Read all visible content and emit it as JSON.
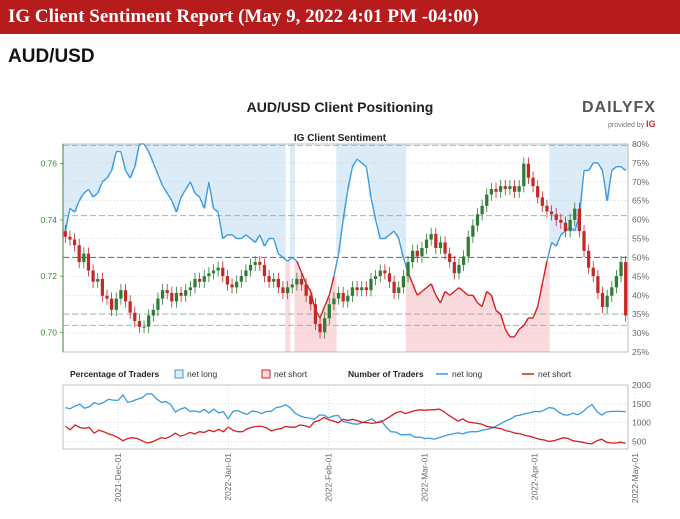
{
  "header": {
    "title": "IG Client Sentiment Report (May 9, 2022 4:01 PM -04:00)",
    "pair": "AUD/USD"
  },
  "logo": {
    "brand": "DAILYFX",
    "provided_by": "provided by",
    "ig": "IG"
  },
  "colors": {
    "banner": "#b71c1c",
    "net_long": "#3b9ae1",
    "net_short": "#d62020",
    "long_fill": "#dcebf8",
    "short_fill": "#fadadd",
    "candle_up": "#2e7d32",
    "candle_down": "#c62828"
  },
  "chart_data": [
    {
      "type": "candlestick",
      "title": "AUD/USD Client Positioning",
      "subtitle": "IG Client Sentiment",
      "y_left": {
        "ticks": [
          "0.76",
          "0.74",
          "0.72",
          "0.70"
        ],
        "values": [
          0.76,
          0.74,
          0.72,
          0.7
        ],
        "range": [
          0.693,
          0.767
        ]
      },
      "y_right": {
        "ticks": [
          "80%",
          "75%",
          "70%",
          "65%",
          "60%",
          "55%",
          "50%",
          "45%",
          "40%",
          "35%",
          "30%",
          "25%"
        ],
        "range": [
          25,
          80
        ]
      },
      "price_close": [
        0.734,
        0.733,
        0.731,
        0.725,
        0.728,
        0.722,
        0.718,
        0.719,
        0.713,
        0.712,
        0.708,
        0.712,
        0.715,
        0.711,
        0.707,
        0.704,
        0.702,
        0.702,
        0.706,
        0.708,
        0.712,
        0.715,
        0.714,
        0.711,
        0.714,
        0.713,
        0.715,
        0.716,
        0.719,
        0.718,
        0.72,
        0.721,
        0.722,
        0.723,
        0.72,
        0.717,
        0.716,
        0.718,
        0.72,
        0.722,
        0.724,
        0.725,
        0.724,
        0.72,
        0.718,
        0.719,
        0.716,
        0.714,
        0.716,
        0.717,
        0.719,
        0.717,
        0.713,
        0.71,
        0.703,
        0.7,
        0.705,
        0.71,
        0.712,
        0.714,
        0.711,
        0.713,
        0.716,
        0.715,
        0.716,
        0.715,
        0.719,
        0.72,
        0.722,
        0.721,
        0.718,
        0.714,
        0.716,
        0.72,
        0.725,
        0.729,
        0.727,
        0.73,
        0.733,
        0.735,
        0.73,
        0.732,
        0.728,
        0.725,
        0.721,
        0.724,
        0.727,
        0.734,
        0.738,
        0.742,
        0.745,
        0.749,
        0.751,
        0.75,
        0.752,
        0.751,
        0.752,
        0.75,
        0.752,
        0.76,
        0.755,
        0.752,
        0.748,
        0.745,
        0.743,
        0.742,
        0.74,
        0.739,
        0.736,
        0.74,
        0.744,
        0.736,
        0.729,
        0.723,
        0.72,
        0.714,
        0.709,
        0.713,
        0.716,
        0.72,
        0.725,
        0.706
      ],
      "net_long_pct": [
        57,
        63,
        62,
        65,
        67,
        68,
        66,
        67,
        70,
        71,
        73,
        78,
        78,
        73,
        71,
        74,
        80,
        80,
        78,
        75,
        72,
        69,
        67,
        65,
        62,
        66,
        68,
        70,
        67,
        66,
        63,
        70,
        63,
        62,
        55,
        56,
        56,
        55,
        55,
        56,
        55,
        54,
        56,
        53,
        55,
        55,
        51,
        50,
        49,
        50,
        49,
        46,
        43,
        41,
        36,
        34,
        37,
        40,
        45,
        51,
        60,
        68,
        74,
        76,
        75,
        74,
        66,
        60,
        55,
        55,
        56,
        57,
        55,
        50,
        46,
        43,
        40,
        41,
        42,
        43,
        40,
        38,
        41,
        40,
        41,
        42,
        41,
        40,
        40,
        38,
        37,
        41,
        40,
        36,
        35,
        31,
        29,
        29,
        31,
        32,
        34,
        34,
        37,
        43,
        49,
        54,
        53,
        56,
        57,
        58,
        57,
        61,
        73,
        73,
        75,
        75,
        73,
        65,
        73,
        74,
        74,
        73
      ],
      "candle_dates": [
        "2021-11-16",
        "2021-11-17",
        "2021-11-18",
        "2021-11-19",
        "2021-11-22",
        "2021-11-23",
        "2021-11-24",
        "2021-11-25",
        "2021-11-26",
        "2021-11-29",
        "2021-11-30",
        "2021-12-01",
        "2021-12-02",
        "2021-12-03",
        "2021-12-06",
        "2021-12-07",
        "2021-12-08",
        "2021-12-09",
        "2021-12-10",
        "2021-12-13",
        "2021-12-14",
        "2021-12-15",
        "2021-12-16",
        "2021-12-17",
        "2021-12-20",
        "2021-12-21",
        "2021-12-22",
        "2021-12-23",
        "2021-12-24",
        "2021-12-27",
        "2021-12-28",
        "2021-12-29",
        "2021-12-30",
        "2021-12-31",
        "2022-01-03",
        "2022-01-04",
        "2022-01-05",
        "2022-01-06",
        "2022-01-07",
        "2022-01-10",
        "2022-01-11",
        "2022-01-12",
        "2022-01-13",
        "2022-01-14",
        "2022-01-17",
        "2022-01-18",
        "2022-01-19",
        "2022-01-20",
        "2022-01-21",
        "2022-01-24",
        "2022-01-25",
        "2022-01-26",
        "2022-01-27",
        "2022-01-28",
        "2022-01-31",
        "2022-02-01",
        "2022-02-02",
        "2022-02-03",
        "2022-02-04",
        "2022-02-07",
        "2022-02-08",
        "2022-02-09",
        "2022-02-10",
        "2022-02-11",
        "2022-02-14",
        "2022-02-15",
        "2022-02-16",
        "2022-02-17",
        "2022-02-18",
        "2022-02-21",
        "2022-02-22",
        "2022-02-23",
        "2022-02-24",
        "2022-02-25",
        "2022-02-28",
        "2022-03-01",
        "2022-03-02",
        "2022-03-03",
        "2022-03-04",
        "2022-03-07",
        "2022-03-08",
        "2022-03-09",
        "2022-03-10",
        "2022-03-11",
        "2022-03-14",
        "2022-03-15",
        "2022-03-16",
        "2022-03-17",
        "2022-03-18",
        "2022-03-21",
        "2022-03-22",
        "2022-03-23",
        "2022-03-24",
        "2022-03-25",
        "2022-03-28",
        "2022-03-29",
        "2022-03-30",
        "2022-03-31",
        "2022-04-01",
        "2022-04-04",
        "2022-04-05",
        "2022-04-06",
        "2022-04-07",
        "2022-04-08",
        "2022-04-11",
        "2022-04-12",
        "2022-04-13",
        "2022-04-14",
        "2022-04-15",
        "2022-04-18",
        "2022-04-19",
        "2022-04-20",
        "2022-04-21",
        "2022-04-22",
        "2022-04-25",
        "2022-04-26",
        "2022-04-27",
        "2022-04-28",
        "2022-04-29",
        "2022-05-02",
        "2022-05-03",
        "2022-05-04"
      ],
      "dashed_levels": [
        0.7665,
        0.7415,
        0.7065,
        0.7025
      ]
    },
    {
      "type": "line",
      "y_ticks": [
        "2000",
        "1500",
        "1000",
        "500"
      ],
      "y_range": [
        300,
        2000
      ],
      "x_ticks": [
        "2021-Dec-01",
        "2022-Jan-01",
        "2022-Feb-01",
        "2022-Mar-01",
        "2022-Apr-01",
        "2022-May-01"
      ],
      "series": [
        {
          "name": "net long",
          "values": [
            1400,
            1370,
            1440,
            1490,
            1380,
            1420,
            1530,
            1490,
            1540,
            1620,
            1600,
            1590,
            1740,
            1540,
            1570,
            1620,
            1660,
            1760,
            1770,
            1640,
            1540,
            1560,
            1480,
            1280,
            1360,
            1400,
            1300,
            1310,
            1280,
            1350,
            1260,
            1360,
            1260,
            1290,
            1100,
            1300,
            1320,
            1260,
            1220,
            1310,
            1290,
            1240,
            1300,
            1300,
            1400,
            1420,
            1480,
            1390,
            1250,
            1180,
            1140,
            1120,
            1090,
            1200,
            1200,
            1130,
            1180,
            1190,
            1030,
            1000,
            970,
            960,
            1000,
            1050,
            1100,
            1000,
            1050,
            880,
            760,
            750,
            680,
            680,
            690,
            610,
            620,
            580,
            590,
            560,
            600,
            640,
            680,
            700,
            730,
            700,
            750,
            760,
            760,
            800,
            820,
            850,
            910,
            980,
            1050,
            1100,
            1180,
            1200,
            1240,
            1260,
            1300,
            1290,
            1330,
            1400,
            1380,
            1280,
            1210,
            1200,
            1250,
            1210,
            1280,
            1400,
            1480,
            1300,
            1200,
            1280,
            1300,
            1300,
            1300,
            1290
          ]
        },
        {
          "name": "net short",
          "values": [
            900,
            810,
            940,
            870,
            850,
            870,
            720,
            800,
            760,
            700,
            660,
            600,
            520,
            580,
            600,
            580,
            520,
            460,
            480,
            540,
            600,
            580,
            640,
            720,
            640,
            680,
            740,
            700,
            760,
            740,
            800,
            760,
            820,
            760,
            880,
            800,
            760,
            760,
            840,
            880,
            900,
            900,
            860,
            780,
            820,
            840,
            900,
            880,
            880,
            940,
            920,
            880,
            1020,
            1060,
            1140,
            1080,
            1040,
            1000,
            1090,
            1060,
            1090,
            1050,
            1010,
            1000,
            980,
            1000,
            1020,
            1100,
            1180,
            1260,
            1300,
            1240,
            1280,
            1320,
            1340,
            1330,
            1340,
            1340,
            1360,
            1300,
            1200,
            1120,
            1040,
            1100,
            1020,
            1000,
            980,
            960,
            900,
            880,
            860,
            840,
            790,
            760,
            720,
            700,
            660,
            640,
            600,
            560,
            540,
            500,
            520,
            560,
            600,
            580,
            520,
            500,
            480,
            450,
            440,
            520,
            560,
            480,
            460,
            460,
            480,
            450
          ]
        }
      ]
    }
  ],
  "legend": {
    "pct_title": "Percentage of Traders",
    "pct_long": "net long",
    "pct_short": "net short",
    "num_title": "Number of Traders",
    "num_long": "net long",
    "num_short": "net short"
  }
}
